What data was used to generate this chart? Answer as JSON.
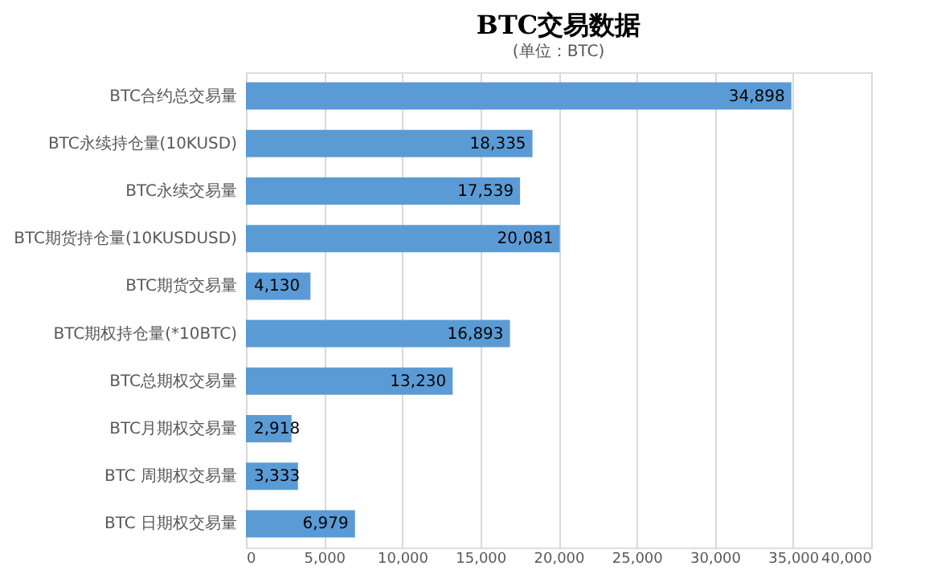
{
  "chart_data": {
    "type": "bar",
    "orientation": "horizontal",
    "title": "BTC交易数据",
    "subtitle": "(单位：BTC)",
    "categories": [
      "BTC合约总交易量",
      "BTC永续持仓量(10KUSD)",
      "BTC永续交易量",
      "BTC期货持仓量(10KUSDUSD)",
      "BTC期货交易量",
      "BTC期权持仓量(*10BTC)",
      "BTC总期权交易量",
      "BTC月期权交易量",
      "BTC 周期权交易量",
      "BTC 日期权交易量"
    ],
    "values": [
      34898,
      18335,
      17539,
      20081,
      4130,
      16893,
      13230,
      2918,
      3333,
      6979
    ],
    "value_labels": [
      "34,898",
      "18,335",
      "17,539",
      "20,081",
      "4,130",
      "16,893",
      "13,230",
      "2,918",
      "3,333",
      "6,979"
    ],
    "color": "#5b9bd5",
    "xlim": [
      0,
      40000
    ],
    "xticks": [
      0,
      {
        "value": 5000,
        "label": "5,000"
      },
      {
        "value": 10000,
        "label": "10,000"
      },
      {
        "value": 15000,
        "label": "15,000"
      },
      {
        "value": 20000,
        "label": "20,000"
      },
      {
        "value": 25000,
        "label": "25,000"
      },
      {
        "value": 30000,
        "label": "30,000"
      },
      {
        "value": 35000,
        "label": "35,000"
      },
      {
        "value": 40000,
        "label": "40,000"
      }
    ],
    "grid": "x"
  }
}
